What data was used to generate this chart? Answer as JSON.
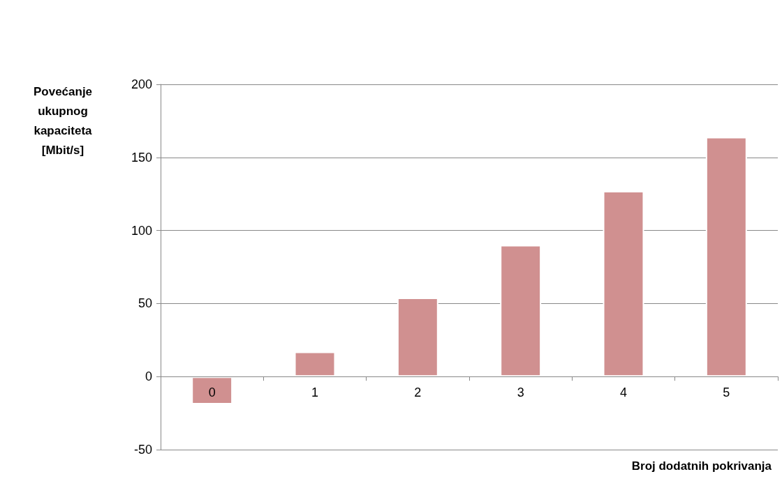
{
  "chart_data": {
    "type": "bar",
    "xlabel": "Broj dodatnih pokrivanja",
    "ylabel": "Povećanje\nukupnog\nkapaciteta\n[Mbit/s]",
    "categories": [
      "0",
      "1",
      "2",
      "3",
      "4",
      "5"
    ],
    "values": [
      -19,
      17,
      54,
      90,
      127,
      164
    ],
    "color": "#d09090",
    "ylim": [
      -50,
      200
    ],
    "yticks": [
      -50,
      0,
      50,
      100,
      150,
      200
    ],
    "grid": "y"
  }
}
